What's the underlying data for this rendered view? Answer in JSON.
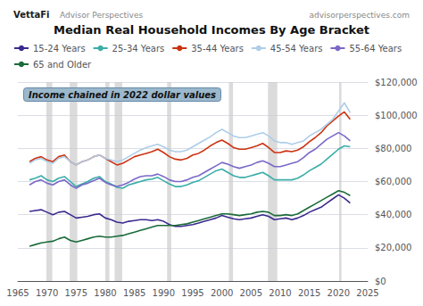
{
  "chart_data": {
    "type": "line",
    "title": "Median Real Household Incomes By Age Bracket",
    "title_left": [
      "VettaFi",
      "Advisor Perspectives"
    ],
    "title_right": "advisorperspectives.com",
    "annotation": "Income chained in 2022 dollar values",
    "xlim": [
      1965,
      2025
    ],
    "xticks": [
      1965,
      1970,
      1975,
      1980,
      1985,
      1990,
      1995,
      2000,
      2005,
      2010,
      2015,
      2020,
      2025
    ],
    "ylim": [
      0,
      120000
    ],
    "yticks": [
      {
        "value": 0,
        "label": "$0"
      },
      {
        "value": 20000,
        "label": "$20,000"
      },
      {
        "value": 40000,
        "label": "$40,000"
      },
      {
        "value": 60000,
        "label": "$60,000"
      },
      {
        "value": 80000,
        "label": "$80,000"
      },
      {
        "value": 100000,
        "label": "$100,000"
      },
      {
        "value": 120000,
        "label": "$120,000"
      }
    ],
    "grid": true,
    "legend": "top",
    "recession_bands": [
      [
        1969.9,
        1970.9
      ],
      [
        1973.9,
        1975.2
      ],
      [
        1980.0,
        1980.7
      ],
      [
        1981.6,
        1982.9
      ],
      [
        1990.6,
        1991.3
      ],
      [
        2001.2,
        2001.9
      ],
      [
        2007.9,
        2009.5
      ],
      [
        2020.1,
        2020.5
      ]
    ],
    "x": [
      1967,
      1968,
      1969,
      1970,
      1971,
      1972,
      1973,
      1974,
      1975,
      1976,
      1977,
      1978,
      1979,
      1980,
      1981,
      1982,
      1983,
      1984,
      1985,
      1986,
      1987,
      1988,
      1989,
      1990,
      1991,
      1992,
      1993,
      1994,
      1995,
      1996,
      1997,
      1998,
      1999,
      2000,
      2001,
      2002,
      2003,
      2004,
      2005,
      2006,
      2007,
      2008,
      2009,
      2010,
      2011,
      2012,
      2013,
      2014,
      2015,
      2016,
      2017,
      2018,
      2019,
      2020,
      2021,
      2022
    ],
    "series": [
      {
        "name": "15-24 Years",
        "color": "#3B2A8F",
        "values": [
          42000,
          42500,
          43000,
          41500,
          40000,
          41500,
          42000,
          40000,
          38000,
          38500,
          39000,
          40000,
          40500,
          38000,
          37000,
          35500,
          35000,
          36000,
          36500,
          37000,
          37000,
          36500,
          37000,
          36000,
          34000,
          33000,
          33000,
          33500,
          34000,
          35000,
          36000,
          37000,
          38000,
          39500,
          38500,
          37500,
          37000,
          37500,
          38000,
          39000,
          40000,
          39000,
          37000,
          37500,
          38000,
          37000,
          38000,
          39500,
          41500,
          43000,
          44500,
          47000,
          49500,
          52000,
          50000,
          47000
        ]
      },
      {
        "name": "25-34 Years",
        "color": "#3AADA8",
        "values": [
          61000,
          62000,
          63500,
          61000,
          60000,
          62000,
          63000,
          60000,
          57000,
          58500,
          60000,
          62000,
          63000,
          60000,
          58500,
          56500,
          56000,
          58000,
          59000,
          60000,
          61000,
          61500,
          62500,
          60500,
          58500,
          57000,
          57000,
          58000,
          59500,
          60500,
          62500,
          64500,
          66500,
          67500,
          65500,
          63500,
          62500,
          62500,
          63500,
          64500,
          65500,
          63500,
          61000,
          61000,
          61000,
          61000,
          62000,
          64000,
          66500,
          68500,
          70500,
          73500,
          76500,
          79500,
          81500,
          81000
        ]
      },
      {
        "name": "35-44 Years",
        "color": "#CC3311",
        "values": [
          72000,
          74000,
          75000,
          73000,
          72000,
          75000,
          76000,
          72000,
          70000,
          72000,
          73000,
          75000,
          76000,
          74000,
          72000,
          70000,
          71000,
          73000,
          75000,
          76000,
          77000,
          78000,
          79500,
          77500,
          75000,
          73500,
          73000,
          74000,
          76000,
          77000,
          79000,
          81500,
          83500,
          85000,
          83000,
          80500,
          79500,
          79500,
          80500,
          81500,
          83000,
          80500,
          77500,
          77500,
          78500,
          78000,
          79000,
          81000,
          84000,
          86500,
          89500,
          93500,
          96500,
          99500,
          102000,
          97500
        ]
      },
      {
        "name": "45-54 Years",
        "color": "#AECDE8",
        "values": [
          71000,
          73000,
          74000,
          72000,
          71000,
          74000,
          75000,
          72000,
          70000,
          72000,
          73000,
          75000,
          76000,
          74000,
          73000,
          72000,
          73000,
          75000,
          77000,
          79000,
          80500,
          81500,
          82500,
          81000,
          79000,
          78000,
          78000,
          79000,
          81000,
          83000,
          85000,
          87000,
          89500,
          91500,
          89500,
          87500,
          86500,
          86500,
          87500,
          88500,
          89500,
          87500,
          84500,
          83500,
          83500,
          82500,
          83500,
          84500,
          87500,
          89500,
          91500,
          94500,
          97500,
          102500,
          107500,
          101500
        ]
      },
      {
        "name": "55-64 Years",
        "color": "#7B68C8",
        "values": [
          58000,
          60000,
          61000,
          59000,
          58000,
          60000,
          61000,
          58000,
          56000,
          58000,
          59000,
          60500,
          62000,
          59500,
          58000,
          57000,
          58000,
          59500,
          61500,
          63000,
          63500,
          63500,
          64500,
          63000,
          61000,
          60000,
          60000,
          61000,
          62500,
          63500,
          65500,
          67500,
          69500,
          71500,
          70500,
          69000,
          68000,
          69000,
          70000,
          71500,
          72500,
          71000,
          69000,
          69000,
          70000,
          71000,
          72000,
          74500,
          77500,
          79500,
          82500,
          85500,
          87500,
          89500,
          87500,
          84500
        ]
      },
      {
        "name": "65 and Older",
        "color": "#1B6B3A",
        "values": [
          21000,
          22000,
          23000,
          23500,
          24000,
          25500,
          26500,
          24500,
          23500,
          24500,
          25500,
          26500,
          27000,
          26500,
          26500,
          27000,
          27500,
          28500,
          29500,
          30500,
          31500,
          32500,
          33500,
          33500,
          33500,
          33500,
          34000,
          34500,
          35500,
          36500,
          37500,
          38500,
          39500,
          40500,
          40500,
          40000,
          39500,
          40000,
          40500,
          41500,
          42000,
          41500,
          39500,
          39500,
          40000,
          39500,
          40500,
          42500,
          44500,
          46500,
          48500,
          50500,
          52500,
          54500,
          53500,
          51500
        ]
      }
    ]
  }
}
